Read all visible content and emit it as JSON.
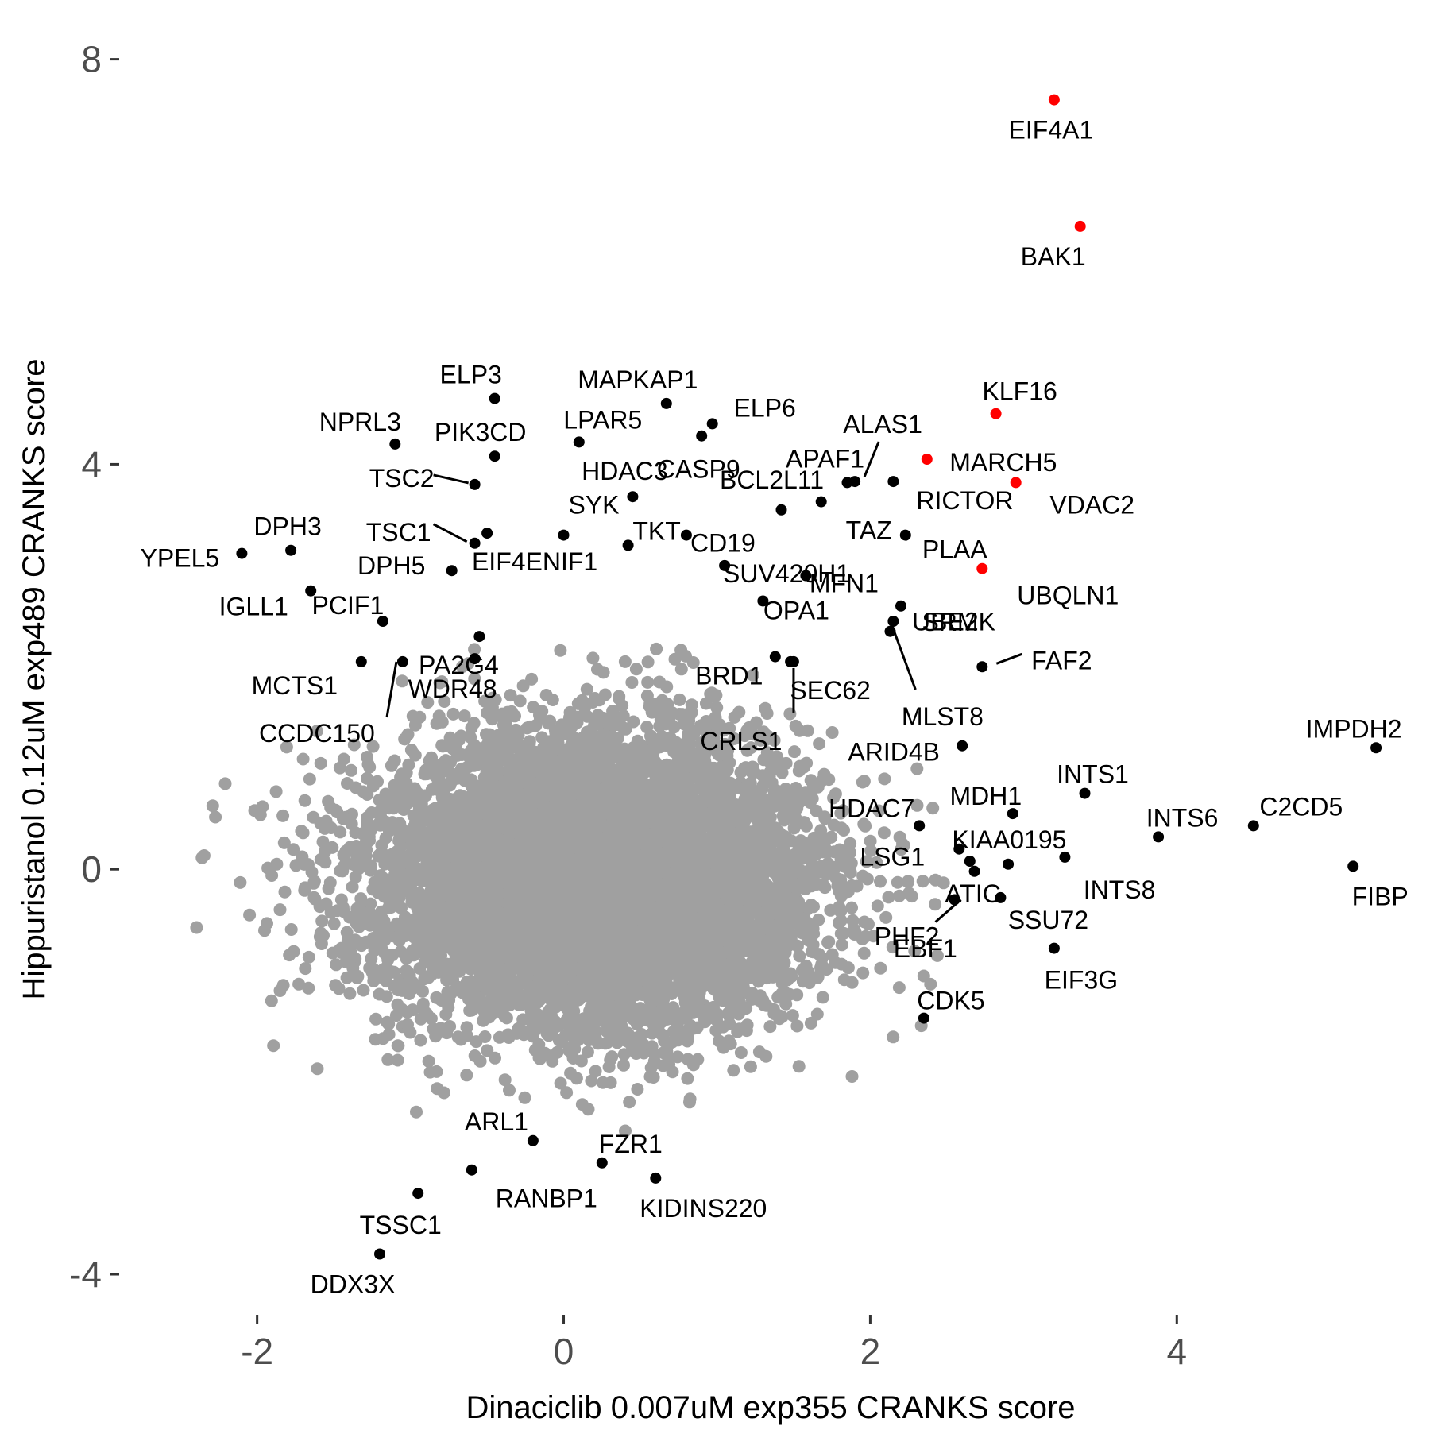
{
  "chart_data": {
    "type": "scatter",
    "title": "",
    "xlabel": "Dinaciclib 0.007uM exp355 CRANKS score",
    "ylabel": "Hippuristanol 0.12uM exp489 CRANKS score",
    "xlim": [
      -2.9,
      5.6
    ],
    "ylim": [
      -4.4,
      8.35
    ],
    "x_ticks": [
      -2,
      0,
      2,
      4
    ],
    "y_ticks": [
      -4,
      0,
      4,
      8
    ],
    "x_tick_labels": [
      "-2",
      "0",
      "2",
      "4"
    ],
    "y_tick_labels": [
      "-4",
      "0",
      "4",
      "8"
    ],
    "grid": false,
    "legend": "none",
    "colors": {
      "background": "#ffffff",
      "highlight": "#ff0000",
      "labeled": "#000000",
      "other": "#a0a0a0",
      "tick_text": "#4d4d4d"
    },
    "highlighted_points": [
      {
        "gene": "EIF4A1",
        "x": 3.2,
        "y": 7.6
      },
      {
        "gene": "BAK1",
        "x": 3.37,
        "y": 6.35
      },
      {
        "gene": "KLF16",
        "x": 2.82,
        "y": 4.5
      },
      {
        "gene": "MARCH5",
        "x": 2.37,
        "y": 4.05
      },
      {
        "gene": "VDAC2",
        "x": 2.95,
        "y": 3.82
      },
      {
        "gene": "UBQLN1",
        "x": 2.73,
        "y": 2.97
      }
    ],
    "labeled_points": [
      {
        "gene": "ELP3",
        "x": -0.45,
        "y": 4.65
      },
      {
        "gene": "MAPKAP1",
        "x": 0.67,
        "y": 4.6
      },
      {
        "gene": "ELP6",
        "x": 0.97,
        "y": 4.4
      },
      {
        "gene": "NPRL3",
        "x": -1.1,
        "y": 4.2
      },
      {
        "gene": "PIK3CD",
        "x": -0.45,
        "y": 4.08
      },
      {
        "gene": "LPAR5",
        "x": 0.1,
        "y": 4.22
      },
      {
        "gene": "ALAS1",
        "x": 1.9,
        "y": 3.83
      },
      {
        "gene": "APAF1",
        "x": 1.85,
        "y": 3.82
      },
      {
        "gene": "TSC2",
        "x": -0.58,
        "y": 3.8
      },
      {
        "gene": "HDAC3",
        "x": 0.45,
        "y": 3.68
      },
      {
        "gene": "CASP9",
        "x": 0.9,
        "y": 4.28
      },
      {
        "gene": "BCL2L11",
        "x": 1.42,
        "y": 3.55
      },
      {
        "gene": "TAZ",
        "x": 1.68,
        "y": 3.63
      },
      {
        "gene": "RICTOR",
        "x": 2.15,
        "y": 3.83
      },
      {
        "gene": "EIF4ENIF1",
        "x": -0.5,
        "y": 3.32
      },
      {
        "gene": "SYK",
        "x": 0.0,
        "y": 3.3
      },
      {
        "gene": "TKT",
        "x": 0.42,
        "y": 3.2
      },
      {
        "gene": "TSC1",
        "x": -0.58,
        "y": 3.22
      },
      {
        "gene": "CD19",
        "x": 0.8,
        "y": 3.3
      },
      {
        "gene": "SUV420H1",
        "x": 1.05,
        "y": 3.0
      },
      {
        "gene": "MFN1",
        "x": 1.58,
        "y": 2.9
      },
      {
        "gene": "PLAA",
        "x": 2.23,
        "y": 3.3
      },
      {
        "gene": "YPEL5",
        "x": -2.1,
        "y": 3.12
      },
      {
        "gene": "DPH3",
        "x": -1.78,
        "y": 3.15
      },
      {
        "gene": "DPH5",
        "x": -0.73,
        "y": 2.95
      },
      {
        "gene": "IGLL1",
        "x": -1.65,
        "y": 2.75
      },
      {
        "gene": "OPA1",
        "x": 1.3,
        "y": 2.65
      },
      {
        "gene": "SRM",
        "x": 2.2,
        "y": 2.6
      },
      {
        "gene": "PA2G4",
        "x": -0.55,
        "y": 2.3
      },
      {
        "gene": "PCIF1",
        "x": -1.18,
        "y": 2.45
      },
      {
        "gene": "UBE2K",
        "x": 2.13,
        "y": 2.35
      },
      {
        "gene": "FAF2",
        "x": 2.73,
        "y": 2.0
      },
      {
        "gene": "MCTS1",
        "x": -1.32,
        "y": 2.05
      },
      {
        "gene": "WDR48",
        "x": -0.58,
        "y": 2.08
      },
      {
        "gene": "BRD1",
        "x": 1.38,
        "y": 2.1
      },
      {
        "gene": "SEC62",
        "x": 1.48,
        "y": 2.05
      },
      {
        "gene": "MLST8",
        "x": 2.15,
        "y": 2.45
      },
      {
        "gene": "CCDC150",
        "x": -1.05,
        "y": 2.05
      },
      {
        "gene": "CRLS1",
        "x": 1.5,
        "y": 2.05
      },
      {
        "gene": "IMPDH2",
        "x": 5.3,
        "y": 1.2
      },
      {
        "gene": "ARID4B",
        "x": 2.6,
        "y": 1.22
      },
      {
        "gene": "INTS1",
        "x": 3.4,
        "y": 0.75
      },
      {
        "gene": "MDH1",
        "x": 2.93,
        "y": 0.55
      },
      {
        "gene": "C2CD5",
        "x": 4.5,
        "y": 0.43
      },
      {
        "gene": "HDAC7",
        "x": 2.32,
        "y": 0.43
      },
      {
        "gene": "INTS6",
        "x": 3.88,
        "y": 0.32
      },
      {
        "gene": "KIAA0195",
        "x": 3.27,
        "y": 0.12
      },
      {
        "gene": "LSG1",
        "x": 2.58,
        "y": 0.2
      },
      {
        "gene": "FIBP",
        "x": 5.15,
        "y": 0.03
      },
      {
        "gene": "INTS8",
        "x": 2.9,
        "y": 0.05
      },
      {
        "gene": "ATIC",
        "x": 2.68,
        "y": -0.02
      },
      {
        "gene": "PHF2",
        "x": 2.55,
        "y": -0.3
      },
      {
        "gene": "SSU72",
        "x": 2.85,
        "y": -0.28
      },
      {
        "gene": "EBF1",
        "x": 2.65,
        "y": 0.08
      },
      {
        "gene": "EIF3G",
        "x": 3.2,
        "y": -0.78
      },
      {
        "gene": "CDK5",
        "x": 2.35,
        "y": -1.47
      },
      {
        "gene": "ARL1",
        "x": -0.2,
        "y": -2.68
      },
      {
        "gene": "FZR1",
        "x": 0.25,
        "y": -2.9
      },
      {
        "gene": "RANBP1",
        "x": -0.6,
        "y": -2.97
      },
      {
        "gene": "TSSC1",
        "x": -0.95,
        "y": -3.2
      },
      {
        "gene": "KIDINS220",
        "x": 0.6,
        "y": -3.05
      },
      {
        "gene": "DDX3X",
        "x": -1.2,
        "y": -3.8
      }
    ],
    "background_point_count": 8000,
    "background_spread": {
      "x_mean": 0.2,
      "y_mean": -0.1,
      "x_sd": 0.72,
      "y_sd": 0.72
    }
  }
}
